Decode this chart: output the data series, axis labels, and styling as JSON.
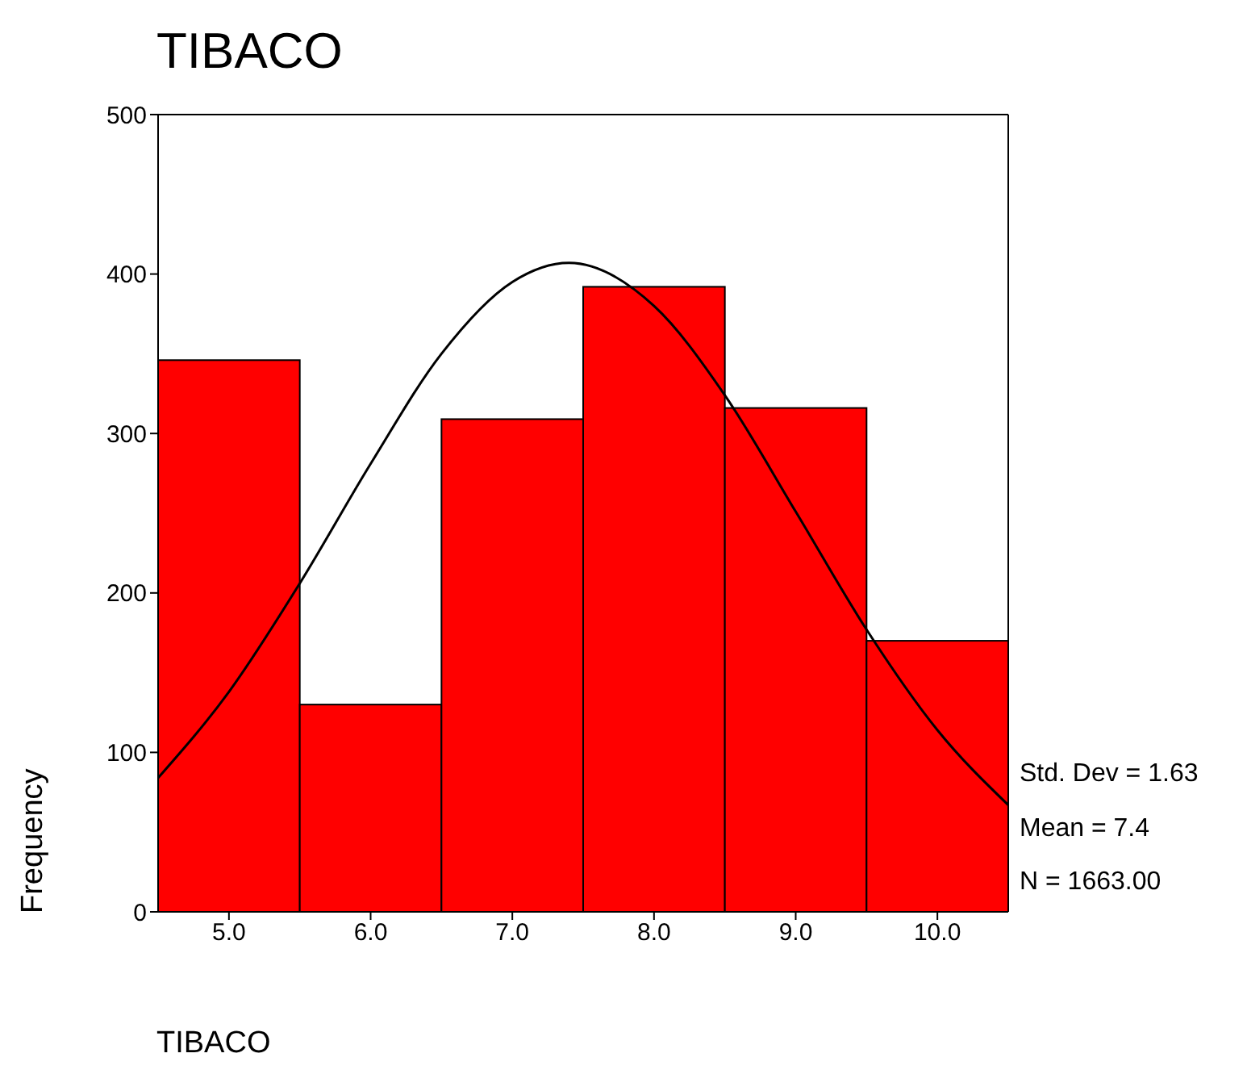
{
  "chart_data": {
    "type": "histogram",
    "title": "TIBACO",
    "xlabel": "TIBACO",
    "ylabel": "Frequency",
    "bins": [
      4.5,
      5.5,
      6.5,
      7.5,
      8.5,
      9.5,
      10.5
    ],
    "values": [
      346,
      130,
      309,
      392,
      316,
      170
    ],
    "color": "#ff0000",
    "series": [
      {
        "type": "line",
        "color": "#000000",
        "x": [
          4.5,
          5,
          5.5,
          6,
          6.5,
          7,
          7.4,
          8,
          8.5,
          9,
          9.5,
          10,
          10.5
        ],
        "values": [
          84,
          138,
          206,
          281,
          350,
          395,
          407,
          380,
          324,
          251,
          177,
          114,
          67
        ]
      }
    ],
    "xlim": [
      4.5,
      10.5
    ],
    "xticks": [
      {
        "value": 5,
        "label": "5.0"
      },
      {
        "value": 6,
        "label": "6.0"
      },
      {
        "value": 7,
        "label": "7.0"
      },
      {
        "value": 8,
        "label": "8.0"
      },
      {
        "value": 9,
        "label": "9.0"
      },
      {
        "value": 10,
        "label": "10.0"
      }
    ],
    "ylim": [
      0,
      500
    ],
    "yticks": [
      0,
      100,
      200,
      300,
      400,
      500
    ],
    "grid": false,
    "annotations": [
      "Std. Dev = 1.63",
      "Mean = 7.4",
      "N = 1663.00"
    ]
  }
}
